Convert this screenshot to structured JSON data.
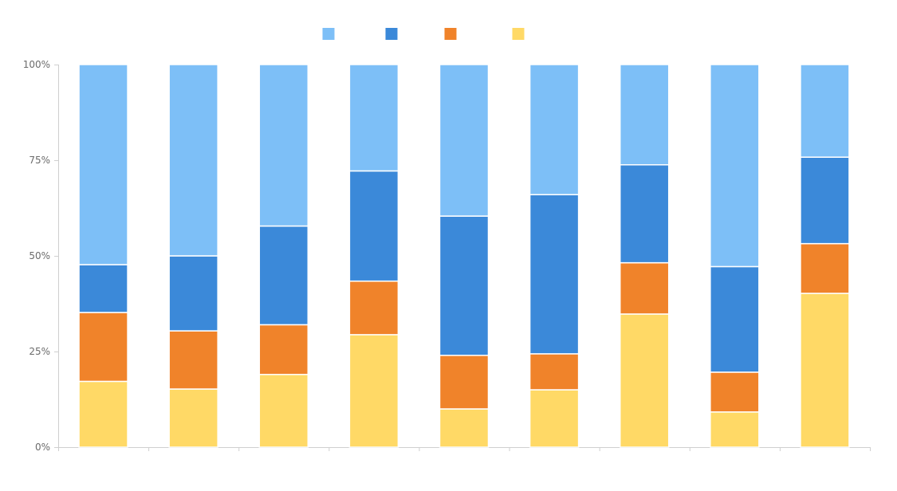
{
  "chart_data": {
    "type": "bar",
    "stacked": "percent",
    "ylim": [
      0,
      100
    ],
    "y_ticks": [
      "0%",
      "25%",
      "50%",
      "75%",
      "100%"
    ],
    "y_tick_values": [
      0,
      25,
      50,
      75,
      100
    ],
    "categories": [
      "",
      "",
      "",
      "",
      "",
      "",
      "",
      "",
      ""
    ],
    "series": [
      {
        "color": "#ffd966",
        "values": [
          17.2,
          15.2,
          19.0,
          29.4,
          10.0,
          15.0,
          34.8,
          9.2,
          40.2
        ]
      },
      {
        "color": "#f0832a",
        "values": [
          18.0,
          15.2,
          13.0,
          14.0,
          14.0,
          9.4,
          13.4,
          10.4,
          13.0
        ]
      },
      {
        "color": "#3b89d9",
        "values": [
          12.5,
          19.6,
          25.8,
          28.8,
          36.4,
          41.6,
          25.6,
          27.6,
          22.6
        ]
      },
      {
        "color": "#7dbff7",
        "values": [
          52.3,
          50.0,
          42.2,
          27.8,
          39.6,
          34.0,
          26.2,
          52.8,
          24.2
        ]
      }
    ],
    "legend_placement": "top",
    "legend_order": [
      3,
      2,
      1,
      0
    ],
    "grid": false
  }
}
